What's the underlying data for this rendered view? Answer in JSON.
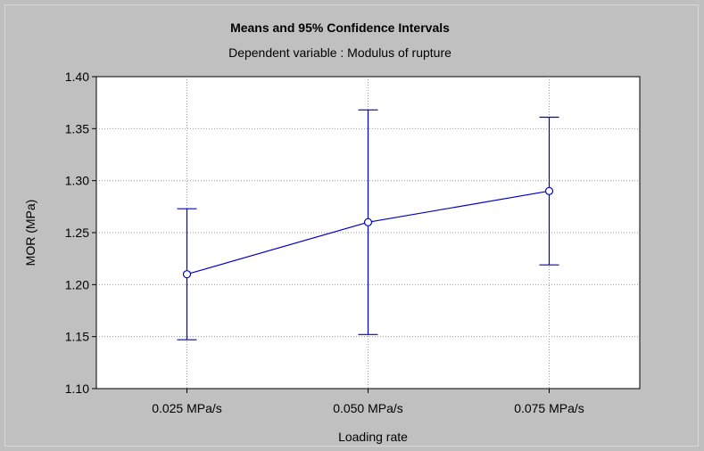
{
  "chart_data": {
    "type": "line",
    "title": "Means and 95% Confidence Intervals",
    "subtitle": "Dependent variable : Modulus of rupture",
    "xlabel": "Loading rate",
    "ylabel": "MOR (MPa)",
    "categories": [
      "0.025 MPa/s",
      "0.050 MPa/s",
      "0.075 MPa/s"
    ],
    "series": [
      {
        "values": [
          1.21,
          1.26,
          1.29
        ],
        "ci_lower": [
          1.147,
          1.152,
          1.219
        ],
        "ci_upper": [
          1.273,
          1.368,
          1.361
        ]
      }
    ],
    "ylim": [
      1.1,
      1.4
    ],
    "yticks": [
      "1.10",
      "1.15",
      "1.20",
      "1.25",
      "1.30",
      "1.35",
      "1.40"
    ],
    "grid": true,
    "series_color": "#0000cc"
  }
}
